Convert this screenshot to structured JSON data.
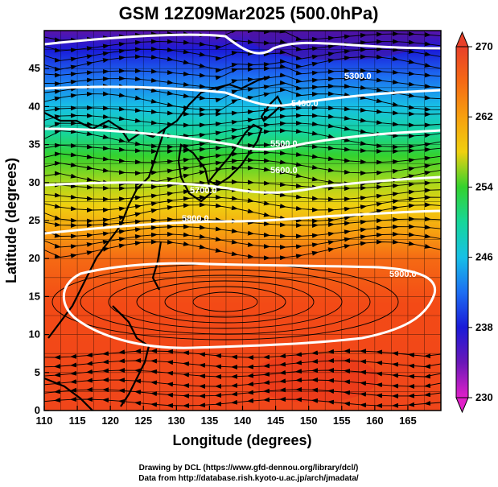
{
  "title": "GSM 12Z09Mar2025 (500.0hPa)",
  "x_axis": {
    "label": "Longitude (degrees)",
    "range": [
      110,
      170
    ],
    "ticks": [
      "110",
      "115",
      "120",
      "125",
      "130",
      "135",
      "140",
      "145",
      "150",
      "155",
      "160",
      "165"
    ]
  },
  "y_axis": {
    "label": "Latitude  (degrees)",
    "range": [
      0,
      50
    ],
    "ticks": [
      "0",
      "5",
      "10",
      "15",
      "20",
      "25",
      "30",
      "35",
      "40",
      "45"
    ]
  },
  "colorbar": {
    "range": [
      230,
      270
    ],
    "ticks": [
      "230",
      "238",
      "246",
      "254",
      "262",
      "270"
    ]
  },
  "contours": [
    {
      "label": "5300.0"
    },
    {
      "label": "5400.0"
    },
    {
      "label": "5500.0"
    },
    {
      "label": "5600.0"
    },
    {
      "label": "5700.0"
    },
    {
      "label": "5800.0"
    },
    {
      "label": "5900.0"
    }
  ],
  "credits": {
    "line1": "Drawing by DCL (https://www.gfd-dennou.org/library/dcl/)",
    "line2": "Data from http://database.rish.kyoto-u.ac.jp/arch/jmadata/"
  }
}
